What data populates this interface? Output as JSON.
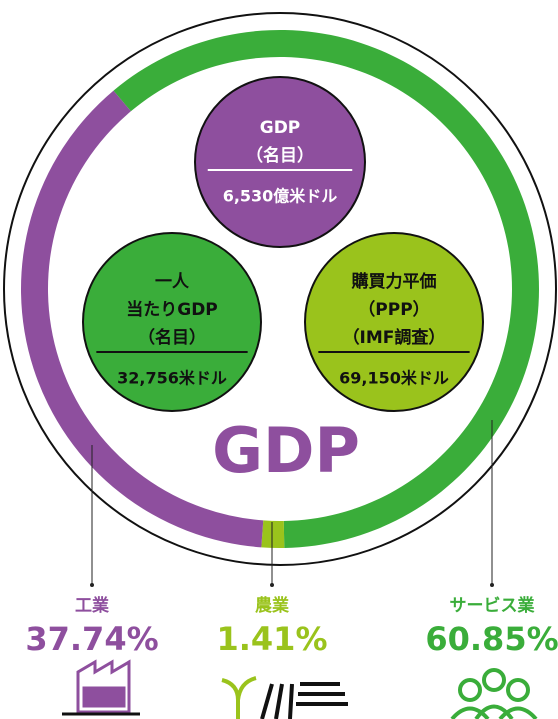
{
  "chart_data": {
    "type": "donut",
    "title": "GDP",
    "categories": [
      "工業",
      "農業",
      "サービス業"
    ],
    "values": [
      37.74,
      1.41,
      60.85
    ],
    "value_labels": [
      "37.74%",
      "1.41%",
      "60.85%"
    ],
    "colors": [
      "#8e4f9e",
      "#9ac31c",
      "#3aad3a"
    ]
  },
  "indicators": [
    {
      "lines": [
        "GDP",
        "（名目）"
      ],
      "value": "6,530億米ドル",
      "color": "#8e4f9e",
      "text_color": "#ffffff"
    },
    {
      "lines": [
        "一人",
        "当たりGDP",
        "（名目）"
      ],
      "value": "32,756米ドル",
      "color": "#3aad3a",
      "text_color": "#111111"
    },
    {
      "lines": [
        "購買力平価",
        "（PPP）",
        "（IMF調査）"
      ],
      "value": "69,150米ドル",
      "color": "#9ac31c",
      "text_color": "#111111"
    }
  ]
}
